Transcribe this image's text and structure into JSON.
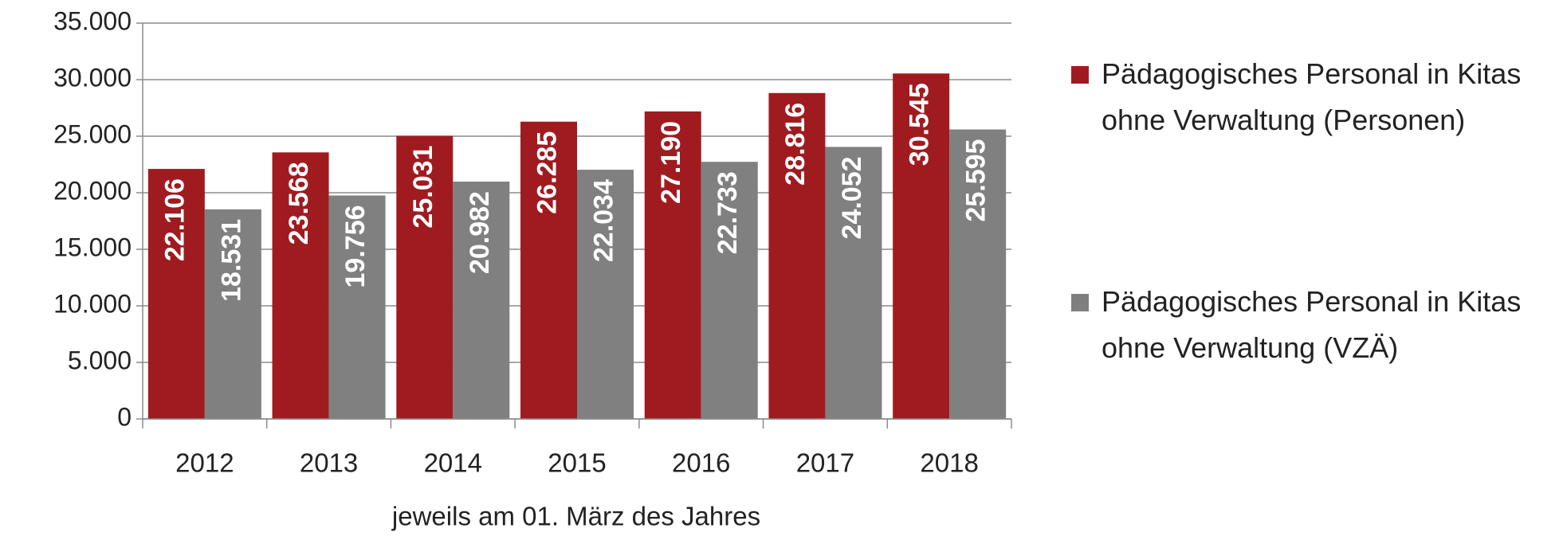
{
  "chart_data": {
    "type": "bar",
    "x_label": "jeweils am 01. März des Jahres",
    "categories": [
      "2012",
      "2013",
      "2014",
      "2015",
      "2016",
      "2017",
      "2018"
    ],
    "series": [
      {
        "name": "Pädagogisches Personal in Kitas ohne Verwaltung (Personen)",
        "color": "#a01b20",
        "values": [
          22106,
          23568,
          25031,
          26285,
          27190,
          28816,
          30545
        ],
        "value_labels": [
          "22.106",
          "23.568",
          "25.031",
          "26.285",
          "27.190",
          "28.816",
          "30.545"
        ]
      },
      {
        "name": "Pädagogisches Personal in Kitas ohne Verwaltung (VZÄ)",
        "color": "#808080",
        "values": [
          18531,
          19756,
          20982,
          22034,
          22733,
          24052,
          25595
        ],
        "value_labels": [
          "18.531",
          "19.756",
          "20.982",
          "22.034",
          "22.733",
          "24.052",
          "25.595"
        ]
      }
    ],
    "ylim": [
      0,
      35000
    ],
    "yticks": [
      {
        "value": 0,
        "label": "0"
      },
      {
        "value": 5000,
        "label": "5.000"
      },
      {
        "value": 10000,
        "label": "10.000"
      },
      {
        "value": 15000,
        "label": "15.000"
      },
      {
        "value": 20000,
        "label": "20.000"
      },
      {
        "value": 25000,
        "label": "25.000"
      },
      {
        "value": 30000,
        "label": "30.000"
      },
      {
        "value": 35000,
        "label": "35.000"
      }
    ],
    "grid": true,
    "legend": "right"
  }
}
